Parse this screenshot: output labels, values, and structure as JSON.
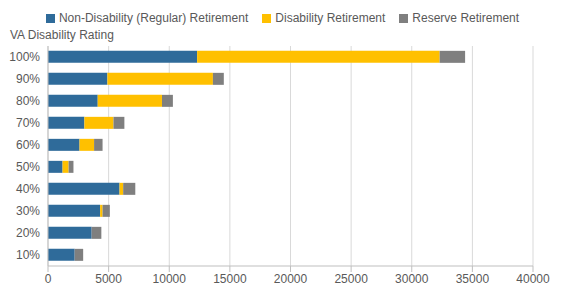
{
  "chart_data": {
    "type": "bar",
    "orientation": "horizontal",
    "stacked": true,
    "grid": true,
    "legend": "top",
    "y_label": "VA Disability Rating",
    "categories": [
      "100%",
      "90%",
      "80%",
      "70%",
      "60%",
      "50%",
      "40%",
      "30%",
      "20%",
      "10%"
    ],
    "series": [
      {
        "name": "Non-Disability (Regular) Retirement",
        "color": "#2f6b9a",
        "values": [
          12300,
          4900,
          4100,
          3000,
          2600,
          1200,
          5900,
          4300,
          3600,
          2200
        ]
      },
      {
        "name": "Disability Retirement",
        "color": "#ffc000",
        "values": [
          20000,
          8700,
          5300,
          2400,
          1200,
          500,
          300,
          200,
          0,
          0
        ]
      },
      {
        "name": "Reserve Retirement",
        "color": "#7f7f7f",
        "values": [
          2100,
          900,
          900,
          900,
          700,
          400,
          1000,
          600,
          800,
          700
        ]
      }
    ],
    "xlim": [
      0,
      40000
    ],
    "xticks": [
      0,
      5000,
      10000,
      15000,
      20000,
      25000,
      30000,
      35000,
      40000
    ]
  }
}
